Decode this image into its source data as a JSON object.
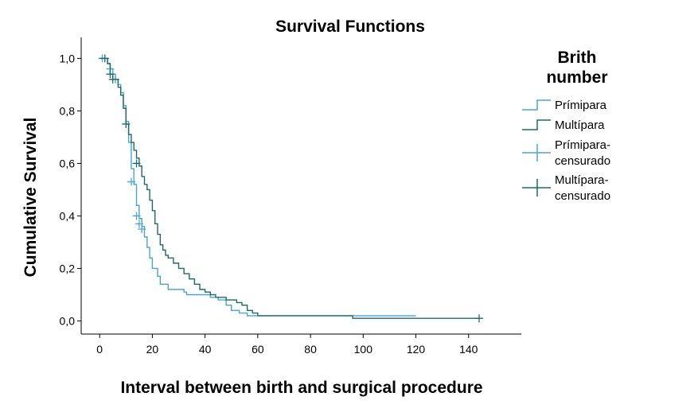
{
  "chart_data": {
    "type": "line",
    "title": "Survival Functions",
    "xlabel": "Interval between birth and surgical procedure",
    "ylabel": "Cumulative Survival",
    "xlim": [
      -7,
      160
    ],
    "ylim": [
      -0.05,
      1.08
    ],
    "xticks": [
      0,
      20,
      40,
      60,
      80,
      100,
      120,
      140
    ],
    "xtick_labels": [
      "0",
      "20",
      "40",
      "60",
      "80",
      "100",
      "120",
      "140"
    ],
    "yticks": [
      0.0,
      0.2,
      0.4,
      0.6,
      0.8,
      1.0
    ],
    "ytick_labels": [
      "0,0",
      "0,2",
      "0,4",
      "0,6",
      "0,8",
      "1,0"
    ],
    "grid": false,
    "legend": {
      "title_lines": [
        "Brith",
        "number"
      ],
      "placement": "right",
      "entries": [
        {
          "lines": [
            "Prímipara"
          ],
          "kind": "step",
          "color": "#4aa4dc"
        },
        {
          "lines": [
            "Multípara"
          ],
          "kind": "step",
          "color": "#1e6b63"
        },
        {
          "lines": [
            "Prímipara-",
            "censurado"
          ],
          "kind": "censor",
          "color": "#4aa4dc"
        },
        {
          "lines": [
            "Multípara-",
            "censurado"
          ],
          "kind": "censor",
          "color": "#1e6b63"
        }
      ]
    },
    "series": [
      {
        "name": "Prímipara",
        "color": "#4aa4dc",
        "steps": [
          [
            0,
            1.0
          ],
          [
            3,
            0.98
          ],
          [
            4,
            0.96
          ],
          [
            5,
            0.94
          ],
          [
            6,
            0.92
          ],
          [
            7,
            0.9
          ],
          [
            8,
            0.87
          ],
          [
            9,
            0.82
          ],
          [
            10,
            0.76
          ],
          [
            11,
            0.68
          ],
          [
            12,
            0.58
          ],
          [
            13,
            0.52
          ],
          [
            14,
            0.44
          ],
          [
            15,
            0.39
          ],
          [
            16,
            0.36
          ],
          [
            17,
            0.32
          ],
          [
            18,
            0.28
          ],
          [
            19,
            0.24
          ],
          [
            20,
            0.2
          ],
          [
            22,
            0.17
          ],
          [
            23,
            0.14
          ],
          [
            26,
            0.12
          ],
          [
            32,
            0.11
          ],
          [
            33,
            0.1
          ],
          [
            42,
            0.09
          ],
          [
            45,
            0.08
          ],
          [
            48,
            0.06
          ],
          [
            50,
            0.04
          ],
          [
            53,
            0.03
          ],
          [
            56,
            0.02
          ],
          [
            120,
            0.02
          ]
        ],
        "censored": [
          [
            1,
            1.0
          ],
          [
            4,
            0.96
          ],
          [
            6,
            0.92
          ],
          [
            12,
            0.53
          ],
          [
            14,
            0.4
          ],
          [
            15,
            0.37
          ],
          [
            16,
            0.35
          ]
        ]
      },
      {
        "name": "Multípara",
        "color": "#1e6b63",
        "steps": [
          [
            0,
            1.0
          ],
          [
            3,
            0.98
          ],
          [
            4,
            0.94
          ],
          [
            5,
            0.92
          ],
          [
            7,
            0.89
          ],
          [
            8,
            0.86
          ],
          [
            9,
            0.81
          ],
          [
            10,
            0.75
          ],
          [
            11,
            0.71
          ],
          [
            12,
            0.68
          ],
          [
            13,
            0.65
          ],
          [
            14,
            0.62
          ],
          [
            15,
            0.59
          ],
          [
            16,
            0.55
          ],
          [
            17,
            0.52
          ],
          [
            18,
            0.5
          ],
          [
            19,
            0.46
          ],
          [
            20,
            0.42
          ],
          [
            21,
            0.37
          ],
          [
            22,
            0.33
          ],
          [
            23,
            0.29
          ],
          [
            24,
            0.27
          ],
          [
            25,
            0.25
          ],
          [
            26,
            0.24
          ],
          [
            28,
            0.22
          ],
          [
            30,
            0.2
          ],
          [
            32,
            0.18
          ],
          [
            34,
            0.16
          ],
          [
            36,
            0.14
          ],
          [
            38,
            0.12
          ],
          [
            40,
            0.11
          ],
          [
            42,
            0.1
          ],
          [
            44,
            0.09
          ],
          [
            48,
            0.08
          ],
          [
            52,
            0.07
          ],
          [
            54,
            0.06
          ],
          [
            56,
            0.04
          ],
          [
            58,
            0.03
          ],
          [
            60,
            0.02
          ],
          [
            96,
            0.01
          ],
          [
            144,
            0.01
          ]
        ],
        "censored": [
          [
            2,
            1.0
          ],
          [
            4,
            0.94
          ],
          [
            5,
            0.92
          ],
          [
            10,
            0.75
          ],
          [
            14,
            0.6
          ],
          [
            144,
            0.01
          ]
        ]
      }
    ]
  }
}
